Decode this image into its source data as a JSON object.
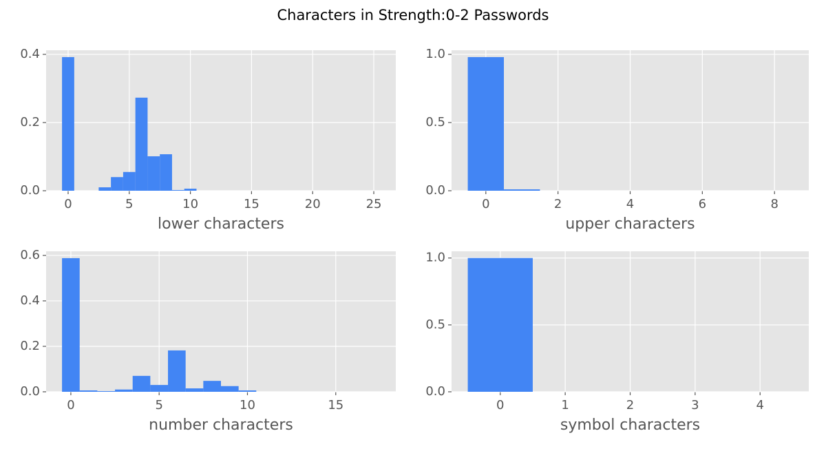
{
  "title": "Characters in Strength:0-2 Passwords",
  "chart_data": [
    {
      "type": "histogram",
      "xlabel": "lower characters",
      "color": "#4285f4",
      "grid": true,
      "bins": [
        -0.5,
        0.5,
        1.5,
        2.5,
        3.5,
        4.5,
        5.5,
        6.5,
        7.5,
        8.5,
        9.5,
        10.5,
        11.5,
        12.5,
        13.5,
        14.5,
        15.5,
        16.5,
        17.5,
        18.5,
        19.5,
        20.5,
        21.5,
        22.5,
        23.5,
        24.5,
        25.5
      ],
      "values": [
        0.392,
        0,
        0,
        0.01,
        0.04,
        0.055,
        0.273,
        0.101,
        0.107,
        0.002,
        0.006,
        0,
        0,
        0,
        0,
        0,
        0,
        0,
        0,
        0,
        0,
        0,
        0,
        0,
        0,
        0
      ],
      "xlim": [
        -1.8,
        26.8
      ],
      "ylim": [
        0,
        0.412
      ],
      "xticks": [
        0,
        5,
        10,
        15,
        20,
        25
      ],
      "yticks": [
        {
          "value": 0,
          "label": "0.0"
        },
        0.2,
        0.4
      ]
    },
    {
      "type": "histogram",
      "xlabel": "upper characters",
      "color": "#4285f4",
      "grid": true,
      "bins": [
        -0.5,
        0.5,
        1.5,
        2.5,
        3.5,
        4.5,
        5.5,
        6.5,
        7.5,
        8.5
      ],
      "values": [
        0.98,
        0.01,
        0,
        0,
        0,
        0,
        0,
        0,
        0
      ],
      "xlim": [
        -0.95,
        8.95
      ],
      "ylim": [
        0,
        1.03
      ],
      "xticks": [
        0,
        2,
        4,
        6,
        8
      ],
      "yticks": [
        {
          "value": 0,
          "label": "0.0"
        },
        0.5,
        {
          "value": 1,
          "label": "1.0"
        }
      ]
    },
    {
      "type": "histogram",
      "xlabel": "number characters",
      "color": "#4285f4",
      "grid": true,
      "bins": [
        -0.5,
        0.5,
        1.5,
        2.5,
        3.5,
        4.5,
        5.5,
        6.5,
        7.5,
        8.5,
        9.5,
        10.5,
        11.5,
        12.5,
        13.5,
        14.5,
        15.5,
        16.5,
        17.5
      ],
      "values": [
        0.588,
        0.006,
        0.003,
        0.01,
        0.07,
        0.03,
        0.182,
        0.015,
        0.048,
        0.025,
        0.006,
        0,
        0,
        0,
        0,
        0,
        0,
        0
      ],
      "xlim": [
        -1.4,
        18.4
      ],
      "ylim": [
        0,
        0.618
      ],
      "xticks": [
        0,
        5,
        10,
        15
      ],
      "yticks": [
        {
          "value": 0,
          "label": "0.0"
        },
        0.2,
        0.4,
        0.6
      ]
    },
    {
      "type": "histogram",
      "xlabel": "symbol characters",
      "color": "#4285f4",
      "grid": true,
      "bins": [
        -0.5,
        0.5,
        1.5,
        2.5,
        3.5,
        4.5
      ],
      "values": [
        1.0,
        0,
        0,
        0,
        0
      ],
      "xlim": [
        -0.75,
        4.75
      ],
      "ylim": [
        0,
        1.05
      ],
      "xticks": [
        0,
        1,
        2,
        3,
        4
      ],
      "yticks": [
        {
          "value": 0,
          "label": "0.0"
        },
        0.5,
        {
          "value": 1,
          "label": "1.0"
        }
      ]
    }
  ]
}
